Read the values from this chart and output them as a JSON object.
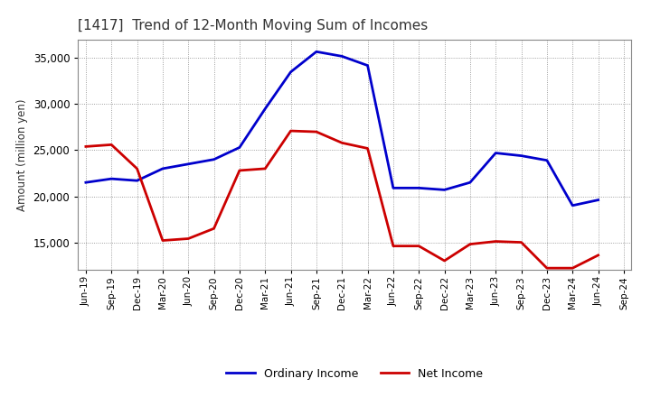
{
  "title": "[1417]  Trend of 12-Month Moving Sum of Incomes",
  "ylabel": "Amount (million yen)",
  "x_labels": [
    "Jun-19",
    "Sep-19",
    "Dec-19",
    "Mar-20",
    "Jun-20",
    "Sep-20",
    "Dec-20",
    "Mar-21",
    "Jun-21",
    "Sep-21",
    "Dec-21",
    "Mar-22",
    "Jun-22",
    "Sep-22",
    "Dec-22",
    "Mar-23",
    "Jun-23",
    "Sep-23",
    "Dec-23",
    "Mar-24",
    "Jun-24",
    "Sep-24"
  ],
  "ordinary_income_values": [
    21500,
    21900,
    21700,
    23000,
    23500,
    24000,
    25300,
    29500,
    33500,
    35700,
    35200,
    34200,
    20900,
    20900,
    20700,
    21500,
    24700,
    24400,
    23900,
    19000,
    19600,
    null
  ],
  "net_income_values": [
    25400,
    25600,
    23000,
    15200,
    15400,
    16500,
    22800,
    23000,
    27100,
    27000,
    25800,
    25200,
    14600,
    14600,
    13000,
    14800,
    15100,
    15000,
    12200,
    12200,
    13600,
    null
  ],
  "ylim": [
    12000,
    37000
  ],
  "yticks": [
    15000,
    20000,
    25000,
    30000,
    35000
  ],
  "ordinary_color": "#0000cc",
  "net_color": "#cc0000",
  "bg_color": "#ffffff",
  "grid_color": "#888888",
  "title_color": "#333333",
  "line_width": 2.0
}
